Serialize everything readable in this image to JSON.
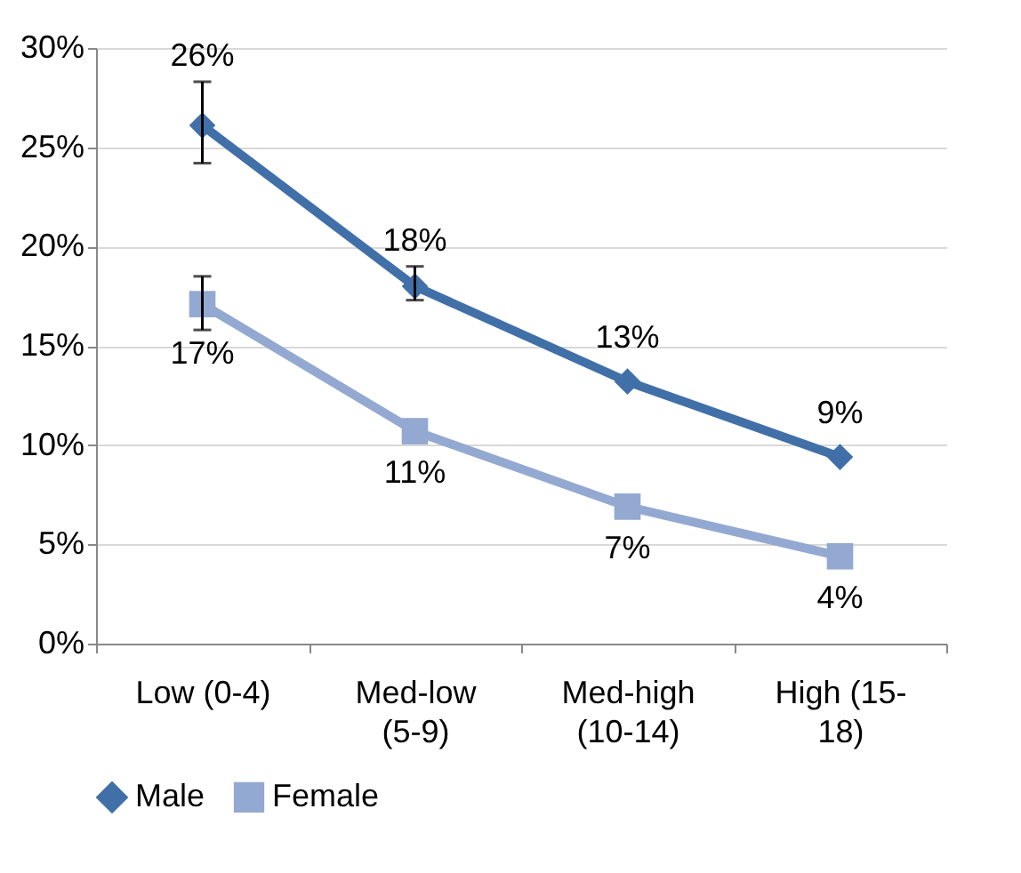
{
  "chart_data": {
    "type": "line",
    "categories": [
      "Low (0-4)",
      "Med-low (5-9)",
      "Med-high (10-14)",
      "High (15-18)"
    ],
    "series": [
      {
        "name": "Male",
        "color": "#4170a8",
        "marker": "diamond",
        "values": [
          26.1,
          18.0,
          13.2,
          9.4
        ],
        "value_labels": [
          "26%",
          "18%",
          "13%",
          "9%"
        ],
        "errors": [
          [
            24.2,
            28.3
          ],
          [
            17.3,
            19.0
          ],
          null,
          null
        ]
      },
      {
        "name": "Female",
        "color": "#93a9d1",
        "marker": "square",
        "values": [
          17.1,
          10.7,
          6.9,
          4.4
        ],
        "value_labels": [
          "17%",
          "11%",
          "7%",
          "4%"
        ],
        "errors": [
          [
            15.8,
            18.5
          ],
          null,
          null,
          null
        ]
      }
    ],
    "ylim": [
      0,
      30
    ],
    "yticks": [
      {
        "value": 0,
        "label": "0%"
      },
      {
        "value": 5,
        "label": "5%"
      },
      {
        "value": 10,
        "label": "10%"
      },
      {
        "value": 15,
        "label": "15%"
      },
      {
        "value": 20,
        "label": "20%"
      },
      {
        "value": 25,
        "label": "25%"
      },
      {
        "value": 30,
        "label": "30%"
      }
    ],
    "grid": "y",
    "legend": "bottom",
    "line_style": "solid"
  }
}
